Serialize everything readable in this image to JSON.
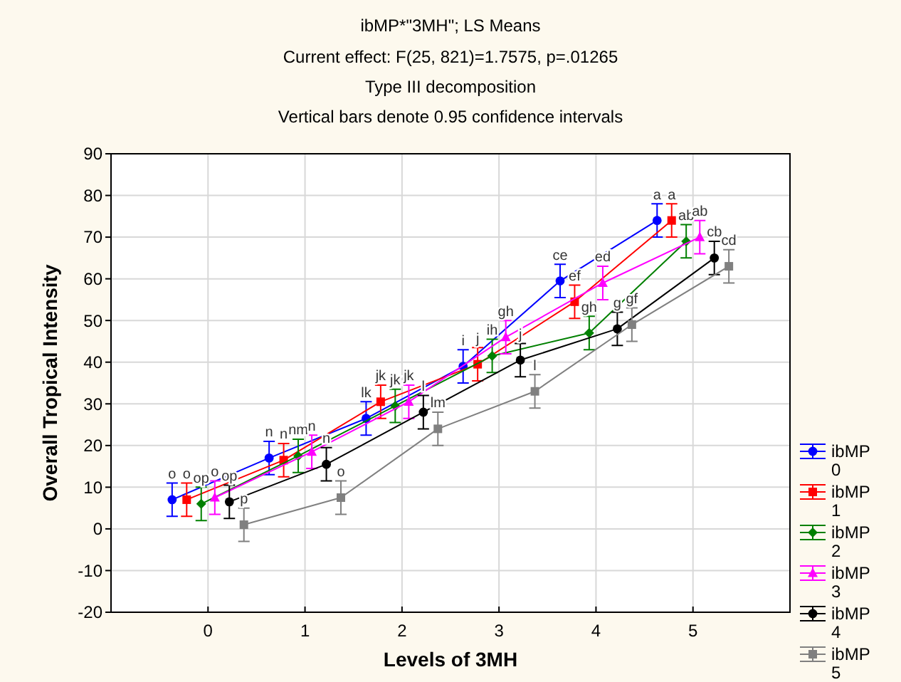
{
  "chart_data": {
    "type": "line",
    "title": "ibMP*\"3MH\"; LS Means",
    "subtitle": "Current effect: F(25, 821)=1.7575, p=.01265\nType III decomposition\nVertical bars denote 0.95 confidence intervals",
    "xlabel": "Levels of 3MH",
    "ylabel": "Overall Tropical Intensity",
    "xlim": [
      -1,
      6
    ],
    "xticks": [
      0,
      1,
      2,
      3,
      4,
      5
    ],
    "ylim": [
      -20,
      90
    ],
    "yticks": [
      -20,
      -10,
      0,
      10,
      20,
      30,
      40,
      50,
      60,
      70,
      80,
      90
    ],
    "grid": true,
    "legend": "right",
    "line_style": "solid",
    "series": [
      {
        "name": "ibMP 0",
        "color": "#0000ff",
        "marker": "circle",
        "x": [
          -0.37,
          0.63,
          1.63,
          2.63,
          3.63,
          4.63
        ],
        "values": [
          7,
          17,
          26.5,
          39,
          59.5,
          74
        ],
        "errors": [
          4,
          4,
          4,
          4,
          4,
          4
        ]
      },
      {
        "name": "ibMP 1",
        "color": "#ff0000",
        "marker": "square",
        "x": [
          -0.22,
          0.78,
          1.78,
          2.78,
          3.78,
          4.78
        ],
        "values": [
          7,
          16.5,
          30.5,
          39.5,
          54.5,
          74
        ],
        "errors": [
          4,
          4,
          4,
          4,
          4,
          4
        ]
      },
      {
        "name": "ibMP 2",
        "color": "#008000",
        "marker": "diamond",
        "x": [
          -0.07,
          0.93,
          1.93,
          2.93,
          3.93,
          4.93
        ],
        "values": [
          6,
          17.5,
          29.5,
          41.5,
          47,
          69
        ],
        "errors": [
          4,
          4,
          4,
          4,
          4,
          4
        ]
      },
      {
        "name": "ibMP 3",
        "color": "#ff00ff",
        "marker": "triangle",
        "x": [
          0.07,
          1.07,
          2.07,
          3.07,
          4.07,
          5.07
        ],
        "values": [
          7.5,
          18.5,
          30.5,
          46,
          59,
          70
        ],
        "errors": [
          4,
          4,
          4,
          4,
          4,
          4
        ]
      },
      {
        "name": "ibMP 4",
        "color": "#000000",
        "marker": "circle",
        "x": [
          0.22,
          1.22,
          2.22,
          3.22,
          4.22,
          5.22
        ],
        "values": [
          6.5,
          15.5,
          28,
          40.5,
          48,
          65
        ],
        "errors": [
          4,
          4,
          4,
          4,
          4,
          4
        ]
      },
      {
        "name": "ibMP 5",
        "color": "#808080",
        "marker": "square",
        "x": [
          0.37,
          1.37,
          2.37,
          3.37,
          4.37,
          5.37
        ],
        "values": [
          1,
          7.5,
          24,
          33,
          49,
          63
        ],
        "errors": [
          4,
          4,
          4,
          4,
          4,
          4
        ]
      }
    ],
    "annotations": [
      {
        "text": "o",
        "x": -0.37,
        "y": 7
      },
      {
        "text": "n",
        "x": 0.63,
        "y": 17
      },
      {
        "text": "lk",
        "x": 1.63,
        "y": 26.5
      },
      {
        "text": "i",
        "x": 2.63,
        "y": 39
      },
      {
        "text": "ce",
        "x": 3.63,
        "y": 59.5
      },
      {
        "text": "a",
        "x": 4.63,
        "y": 74
      },
      {
        "text": "o",
        "x": -0.22,
        "y": 7
      },
      {
        "text": "n",
        "x": 0.78,
        "y": 16.5
      },
      {
        "text": "jk",
        "x": 1.78,
        "y": 30.5
      },
      {
        "text": "j",
        "x": 2.78,
        "y": 39.5
      },
      {
        "text": "ef",
        "x": 3.78,
        "y": 54.5
      },
      {
        "text": "a",
        "x": 4.78,
        "y": 74
      },
      {
        "text": "op",
        "x": -0.07,
        "y": 6
      },
      {
        "text": "nm",
        "x": 0.93,
        "y": 17.5
      },
      {
        "text": "jk",
        "x": 1.93,
        "y": 29.5
      },
      {
        "text": "ih",
        "x": 2.93,
        "y": 41.5
      },
      {
        "text": "gh",
        "x": 3.93,
        "y": 47
      },
      {
        "text": "ab",
        "x": 4.93,
        "y": 69
      },
      {
        "text": "o",
        "x": 0.07,
        "y": 7.5
      },
      {
        "text": "n",
        "x": 1.07,
        "y": 18.5
      },
      {
        "text": "jk",
        "x": 2.07,
        "y": 30.5
      },
      {
        "text": "gh",
        "x": 3.07,
        "y": 46
      },
      {
        "text": "ed",
        "x": 4.07,
        "y": 59
      },
      {
        "text": "ab",
        "x": 5.07,
        "y": 70
      },
      {
        "text": "op",
        "x": 0.22,
        "y": 6.5
      },
      {
        "text": "n",
        "x": 1.22,
        "y": 15.5
      },
      {
        "text": "l",
        "x": 2.22,
        "y": 28
      },
      {
        "text": "j",
        "x": 3.22,
        "y": 40.5
      },
      {
        "text": "g",
        "x": 4.22,
        "y": 48
      },
      {
        "text": "cb",
        "x": 5.22,
        "y": 65
      },
      {
        "text": "p",
        "x": 0.37,
        "y": 1
      },
      {
        "text": "o",
        "x": 1.37,
        "y": 7.5
      },
      {
        "text": "lm",
        "x": 2.37,
        "y": 24
      },
      {
        "text": "l",
        "x": 3.37,
        "y": 33
      },
      {
        "text": "gf",
        "x": 4.37,
        "y": 49
      },
      {
        "text": "cd",
        "x": 5.37,
        "y": 63
      }
    ]
  }
}
